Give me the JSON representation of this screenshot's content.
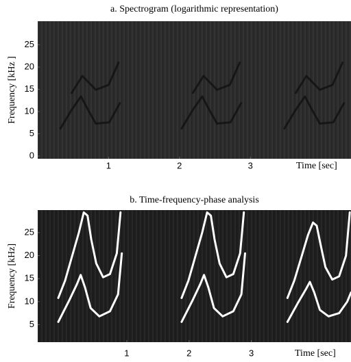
{
  "chart_data": [
    {
      "type": "line",
      "title": "a. Spectrogram (logarithmic representation)",
      "xlabel": "Time [sec]",
      "ylabel": "Frequency [kHz ]",
      "xlim": [
        0,
        4.42
      ],
      "ylim": [
        -0.6,
        30.3
      ],
      "xticks": [
        1,
        2,
        3
      ],
      "yticks": [
        0,
        5,
        10,
        15,
        20,
        25
      ],
      "background": "#2b2b2b",
      "series": [
        {
          "color": "#0d0d0d",
          "x": [
            0.32,
            0.48,
            0.61,
            0.71,
            0.82,
            1.01,
            1.16
          ],
          "values": [
            6.2,
            10.4,
            13.4,
            10.4,
            7.3,
            7.6,
            11.9
          ]
        },
        {
          "color": "#0d0d0d",
          "x": [
            0.48,
            0.63,
            0.82,
            1.0,
            1.14
          ],
          "values": [
            14.2,
            18.0,
            14.9,
            16.0,
            21.0
          ]
        },
        {
          "color": "#0d0d0d",
          "x": [
            2.03,
            2.19,
            2.32,
            2.42,
            2.53,
            2.72,
            2.87
          ],
          "values": [
            6.2,
            10.4,
            13.4,
            10.4,
            7.3,
            7.6,
            11.9
          ]
        },
        {
          "color": "#0d0d0d",
          "x": [
            2.19,
            2.34,
            2.53,
            2.71,
            2.85
          ],
          "values": [
            14.2,
            18.0,
            14.9,
            16.0,
            21.0
          ]
        },
        {
          "color": "#0d0d0d",
          "x": [
            3.48,
            3.64,
            3.77,
            3.87,
            3.98,
            4.17,
            4.32
          ],
          "values": [
            6.2,
            10.4,
            13.4,
            10.4,
            7.3,
            7.6,
            11.9
          ]
        },
        {
          "color": "#0d0d0d",
          "x": [
            3.64,
            3.79,
            3.98,
            4.16,
            4.3
          ],
          "values": [
            14.2,
            18.0,
            14.9,
            16.0,
            21.0
          ]
        }
      ]
    },
    {
      "type": "line",
      "title": "b. Time-frequency-phase analysis",
      "xlabel": "Time [sec]",
      "ylabel": "Frequency [kHz]",
      "xlim": [
        -0.43,
        4.6
      ],
      "ylim": [
        1.2,
        29.9
      ],
      "xticks": [
        1,
        2,
        3
      ],
      "yticks": [
        5,
        10,
        15,
        20,
        25
      ],
      "background": "#1e1e1e",
      "series": [
        {
          "color": "#ffffff",
          "x": [
            -0.1,
            0.01,
            0.12,
            0.23,
            0.31,
            0.37,
            0.43,
            0.51,
            0.62,
            0.73,
            0.84,
            0.9
          ],
          "values": [
            10.8,
            14.6,
            19.8,
            25.0,
            29.4,
            28.7,
            23.5,
            18.3,
            15.3,
            16.0,
            20.5,
            29.4
          ]
        },
        {
          "color": "#ffffff",
          "x": [
            -0.1,
            0.07,
            0.2,
            0.26,
            0.33,
            0.42,
            0.56,
            0.73,
            0.86,
            0.92
          ],
          "values": [
            5.6,
            10.1,
            13.8,
            15.8,
            13.1,
            8.6,
            6.8,
            7.9,
            11.6,
            20.5
          ]
        },
        {
          "color": "#ffffff",
          "x": [
            1.88,
            1.99,
            2.1,
            2.21,
            2.29,
            2.35,
            2.41,
            2.49,
            2.6,
            2.71,
            2.82,
            2.88
          ],
          "values": [
            10.8,
            14.6,
            19.8,
            25.0,
            29.4,
            28.7,
            23.5,
            18.3,
            15.3,
            16.0,
            20.5,
            29.4
          ]
        },
        {
          "color": "#ffffff",
          "x": [
            1.88,
            2.05,
            2.18,
            2.24,
            2.31,
            2.4,
            2.54,
            2.71,
            2.84,
            2.9
          ],
          "values": [
            5.6,
            10.1,
            13.8,
            15.8,
            13.1,
            8.6,
            6.8,
            7.9,
            11.6,
            20.5
          ]
        },
        {
          "color": "#ffffff",
          "x": [
            3.58,
            3.69,
            3.8,
            3.91,
            3.99,
            4.05,
            4.11,
            4.19,
            4.3,
            4.41,
            4.52,
            4.58
          ],
          "values": [
            10.8,
            14.6,
            19.5,
            24.5,
            27.2,
            26.5,
            22.5,
            17.5,
            14.8,
            15.5,
            20.0,
            29.4
          ]
        },
        {
          "color": "#ffffff",
          "x": [
            3.58,
            3.75,
            3.88,
            3.94,
            4.01,
            4.1,
            4.24,
            4.41,
            4.54,
            4.6
          ],
          "values": [
            5.6,
            9.8,
            12.8,
            14.3,
            12.0,
            8.2,
            6.8,
            7.5,
            10.0,
            12.0
          ]
        }
      ]
    }
  ]
}
